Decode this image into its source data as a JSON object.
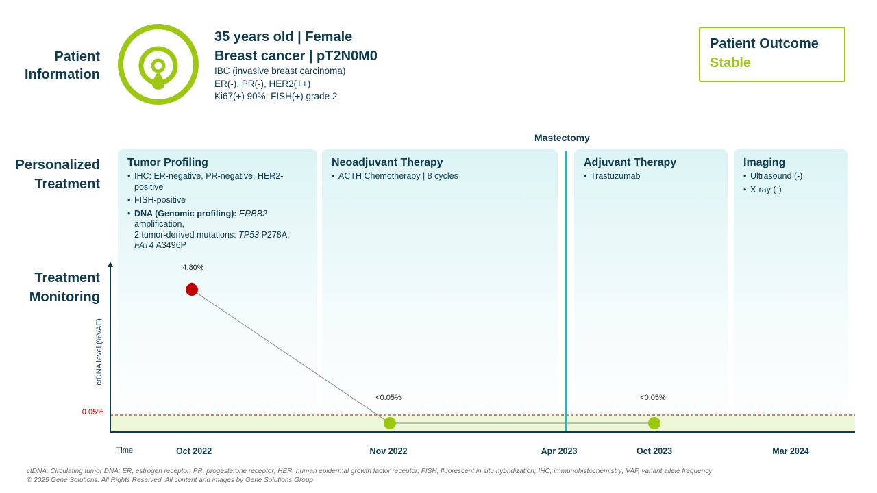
{
  "patient": {
    "section_label": "Patient Information",
    "headline_1": "35 years old | Female",
    "headline_2": "Breast cancer | pT2N0M0",
    "details": [
      "IBC (invasive breast carcinoma)",
      "ER(-), PR(-), HER2(++)",
      "Ki67(+) 90%, FISH(+) grade 2"
    ]
  },
  "outcome": {
    "title": "Patient Outcome",
    "value": "Stable"
  },
  "treatment": {
    "section_label_1": "Personalized",
    "section_label_2": "Treatment",
    "event": "Mastectomy",
    "panels": {
      "tumor": {
        "title": "Tumor Profiling",
        "ihc": "IHC: ER-negative, PR-negative, HER2-positive",
        "fish": "FISH-positive",
        "dna_bold": "DNA (Genomic profiling):",
        "dna_gene": "ERBB2",
        "dna_amp": "amplification,",
        "dna_mut_prefix": "2 tumor-derived mutations:",
        "dna_gene2": "TP53",
        "dna_mut1": "P278A;",
        "dna_gene3": "FAT4",
        "dna_mut2": "A3496P"
      },
      "neo": {
        "title": "Neoadjuvant Therapy",
        "items": [
          "ACTH Chemotherapy | 8 cycles"
        ]
      },
      "adj": {
        "title": "Adjuvant Therapy",
        "items": [
          "Trastuzumab"
        ]
      },
      "img": {
        "title": "Imaging",
        "items": [
          "Ultrasound (-)",
          "X-ray (-)"
        ]
      }
    }
  },
  "monitoring": {
    "section_label_1": "Treatment",
    "section_label_2": "Monitoring"
  },
  "chart_data": {
    "type": "line",
    "ylabel": "ctDNA level (%VAF)",
    "xlabel": "Time",
    "x_ticks": [
      "Oct 2022",
      "Nov 2022",
      "Apr 2023",
      "Oct 2023",
      "Mar 2024"
    ],
    "threshold": {
      "label": "0.05%",
      "value": 0.05
    },
    "series": [
      {
        "points": [
          {
            "x": "Oct 2022",
            "y": 4.8,
            "label": "4.80%",
            "status": "detected"
          },
          {
            "x": "Nov 2022",
            "y": 0.0,
            "label": "<0.05%",
            "status": "below_threshold"
          },
          {
            "x": "Oct 2023",
            "y": 0.0,
            "label": "<0.05%",
            "status": "below_threshold"
          }
        ]
      }
    ],
    "event_marker": {
      "x": "Apr 2023",
      "label": "Mastectomy"
    }
  },
  "colors": {
    "brand_green": "#9cc812",
    "dark_navy": "#0d3b4f",
    "detected_red": "#c00000",
    "event_teal": "#1fb8c3",
    "threshold_red": "#c00000"
  },
  "footnote": {
    "line_1": "ctDNA, Circulating tumor DNA; ER, estrogen receptor; PR, progesterone receptor; HER, human epidermal growth factor receptor; FISH, fluorescent in situ hybridization; IHC, immunohistochemistry; VAF, variant allele frequency",
    "line_2": "© 2025 Gene Solutions. All Rights Reserved. All content and images by Gene Solutions Group"
  }
}
